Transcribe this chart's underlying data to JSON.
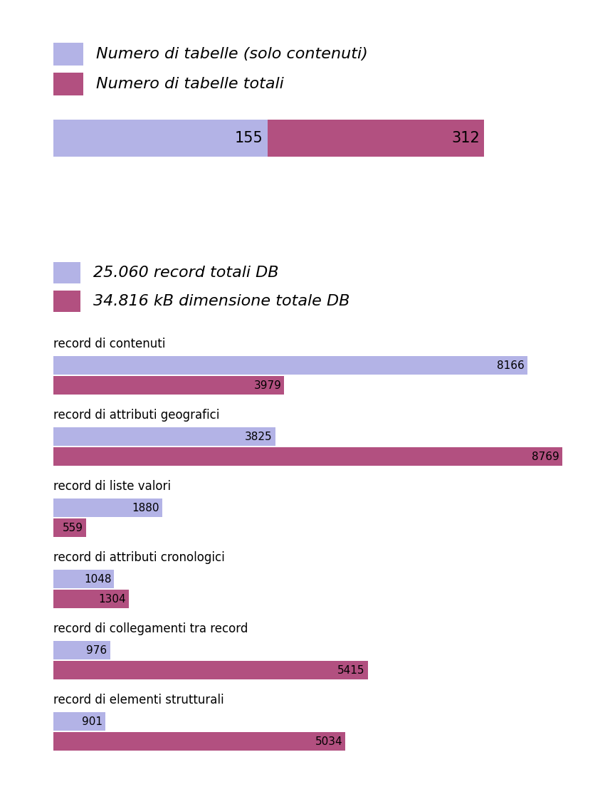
{
  "color_light": "#b3b3e6",
  "color_dark": "#b25080",
  "bg_color": "#ffffff",
  "fig_width": 8.57,
  "fig_height": 11.36,
  "dpi": 100,
  "top_chart": {
    "legend": [
      "Numero di tabelle (solo contenuti)",
      "Numero di tabelle totali"
    ],
    "value1": 155,
    "value2": 312
  },
  "bottom_chart": {
    "legend": [
      "25.060 record totali DB",
      "34.816 kB dimensione totale DB"
    ],
    "categories": [
      "record di contenuti",
      "record di attributi geografici",
      "record di liste valori",
      "record di attributi cronologici",
      "record di collegamenti tra record",
      "record di elementi strutturali"
    ],
    "values_light": [
      8166,
      3825,
      1880,
      1048,
      976,
      901
    ],
    "values_dark": [
      3979,
      8769,
      559,
      1304,
      5415,
      5034
    ]
  },
  "legend_fontsize": 16,
  "category_fontsize": 12,
  "value_fontsize": 11,
  "bar_value_fontsize": 15
}
